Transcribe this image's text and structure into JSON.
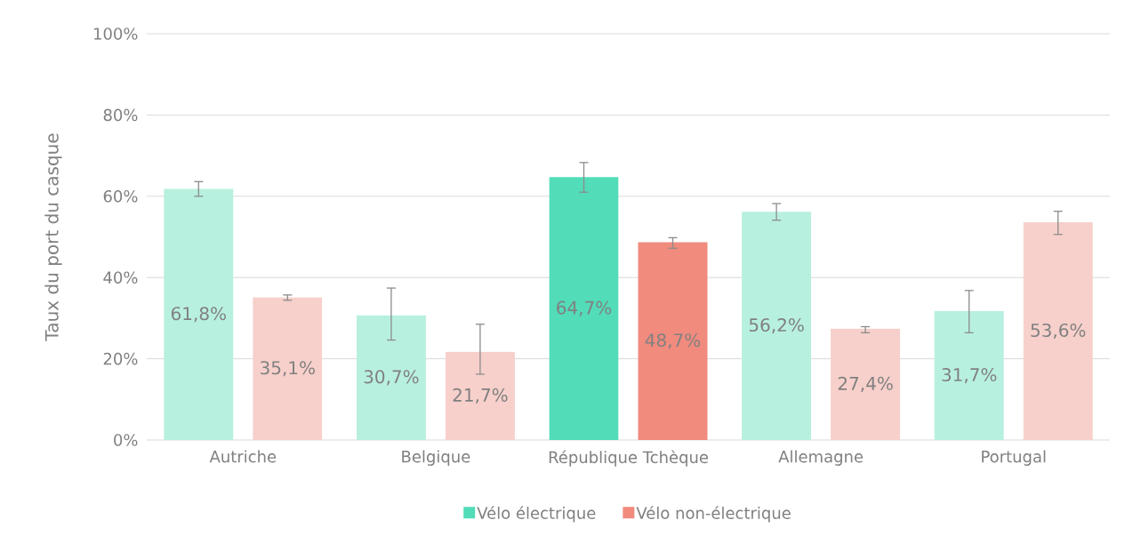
{
  "chart_data": {
    "type": "bar",
    "ylabel": "Taux du port du casque",
    "categories": [
      "Autriche",
      "Belgique",
      "République Tchèque",
      "Allemagne",
      "Portugal"
    ],
    "series": [
      {
        "name": "Vélo électrique",
        "color": "#52dcb8",
        "colors": [
          "#b8f0e0",
          "#b8f0e0",
          "#52dcb8",
          "#b8f0e0",
          "#b8f0e0"
        ],
        "values": [
          61.8,
          30.7,
          64.7,
          56.2,
          31.7
        ],
        "errors": [
          [
            60.0,
            63.6
          ],
          [
            24.6,
            37.4
          ],
          [
            61.0,
            68.3
          ],
          [
            54.1,
            58.2
          ],
          [
            26.4,
            36.8
          ]
        ],
        "value_labels": [
          "61,8%",
          "30,7%",
          "64,7%",
          "56,2%",
          "31,7%"
        ]
      },
      {
        "name": "Vélo non-électrique",
        "color": "#f08b7e",
        "colors": [
          "#f7d0cb",
          "#f7d0cb",
          "#f08b7e",
          "#f7d0cb",
          "#f7d0cb"
        ],
        "values": [
          35.1,
          21.7,
          48.7,
          27.4,
          53.6
        ],
        "errors": [
          [
            34.4,
            35.7
          ],
          [
            16.2,
            28.5
          ],
          [
            47.2,
            49.8
          ],
          [
            26.4,
            27.9
          ],
          [
            50.6,
            56.3
          ]
        ],
        "value_labels": [
          "35,1%",
          "21,7%",
          "48,7%",
          "27,4%",
          "53,6%"
        ]
      }
    ],
    "ylim": [
      0,
      100
    ],
    "yticks": [
      {
        "value": 0,
        "label": "0%"
      },
      {
        "value": 20,
        "label": "20%"
      },
      {
        "value": 40,
        "label": "40%"
      },
      {
        "value": 60,
        "label": "60%"
      },
      {
        "value": 80,
        "label": "80%"
      },
      {
        "value": 100,
        "label": "100%"
      }
    ],
    "grid": "y",
    "legend": "bottom"
  }
}
